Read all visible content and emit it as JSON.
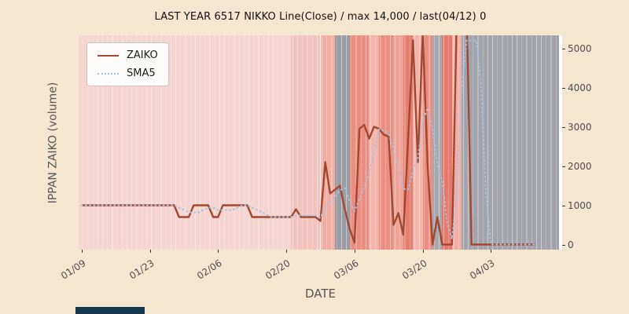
{
  "title": "LAST YEAR 6517 NIKKO Line(Close) / max 14,000 / last(04/12) 0",
  "xlabel": "DATE",
  "ylabel": "IPPAN ZAIKO (volume)",
  "legend": {
    "items": [
      {
        "label": "ZAIKO"
      },
      {
        "label": "SMA5"
      }
    ]
  },
  "chart_data": {
    "type": "line",
    "title": "LAST YEAR 6517 NIKKO Line(Close) / max 14,000 / last(04/12) 0",
    "xlabel": "DATE",
    "ylabel": "IPPAN ZAIKO (volume)",
    "x_ticks": [
      "01/09",
      "01/23",
      "02/06",
      "02/20",
      "03/06",
      "03/20",
      "04/03"
    ],
    "y_ticks": [
      0,
      1000,
      2000,
      3000,
      4000,
      5000
    ],
    "ylim": [
      -130,
      5330
    ],
    "xlim_days": [
      -0.6,
      98.6
    ],
    "grid": false,
    "legend_position": "upper-left",
    "stats": {
      "max_value": 14000,
      "last_date": "04/12",
      "last_value": 0
    },
    "series": [
      {
        "name": "ZAIKO",
        "color": "#a3472e",
        "style": "solid",
        "points": [
          [
            "01/09",
            1000
          ],
          [
            "01/26",
            1000
          ],
          [
            "01/28",
            1000
          ],
          [
            "01/29",
            700
          ],
          [
            "01/31",
            700
          ],
          [
            "02/01",
            1000
          ],
          [
            "02/02",
            1000
          ],
          [
            "02/04",
            1000
          ],
          [
            "02/05",
            700
          ],
          [
            "02/06",
            700
          ],
          [
            "02/07",
            1000
          ],
          [
            "02/12",
            1000
          ],
          [
            "02/13",
            700
          ],
          [
            "02/21",
            700
          ],
          [
            "02/22",
            900
          ],
          [
            "02/23",
            700
          ],
          [
            "02/26",
            700
          ],
          [
            "02/27",
            600
          ],
          [
            "02/28",
            2100
          ],
          [
            "03/01",
            1300
          ],
          [
            "03/03",
            1500
          ],
          [
            "03/04",
            900
          ],
          [
            "03/05",
            400
          ],
          [
            "03/06",
            50
          ],
          [
            "03/07",
            2950
          ],
          [
            "03/08",
            3050
          ],
          [
            "03/09",
            2700
          ],
          [
            "03/10",
            3000
          ],
          [
            "03/11",
            2950
          ],
          [
            "03/12",
            2800
          ],
          [
            "03/13",
            2750
          ],
          [
            "03/14",
            500
          ],
          [
            "03/15",
            800
          ],
          [
            "03/16",
            250
          ],
          [
            "03/17",
            2700
          ],
          [
            "03/18",
            5200
          ],
          [
            "03/19",
            2100
          ],
          [
            "03/20",
            5400
          ],
          [
            "03/21",
            2000
          ],
          [
            "03/22",
            0
          ],
          [
            "03/23",
            700
          ],
          [
            "03/24",
            0
          ],
          [
            "03/26",
            0
          ],
          [
            "03/27",
            6000
          ],
          [
            "03/28",
            14000
          ],
          [
            "03/29",
            6000
          ],
          [
            "03/30",
            0
          ],
          [
            "04/12",
            0
          ]
        ]
      },
      {
        "name": "SMA5",
        "color": "#9fc5e8",
        "style": "dotted",
        "derived_from": "ZAIKO",
        "window": 5
      }
    ],
    "bands": [
      {
        "from": "01/08",
        "to": "02/21",
        "color": "#f6d4cf"
      },
      {
        "from": "02/21",
        "to": "02/27",
        "color": "#f3c4bd"
      },
      {
        "from": "02/27",
        "to": "03/02",
        "color": "#efafa5"
      },
      {
        "from": "03/02",
        "to": "03/05",
        "color": "#9b9ba4"
      },
      {
        "from": "03/05",
        "to": "03/09",
        "color": "#e98e80"
      },
      {
        "from": "03/09",
        "to": "03/11",
        "color": "#f2b4ab"
      },
      {
        "from": "03/11",
        "to": "03/14",
        "color": "#e98e80"
      },
      {
        "from": "03/14",
        "to": "03/16",
        "color": "#efa295"
      },
      {
        "from": "03/16",
        "to": "03/18",
        "color": "#e47f71"
      },
      {
        "from": "03/18",
        "to": "03/20",
        "color": "#f2b4ab"
      },
      {
        "from": "03/20",
        "to": "03/22",
        "color": "#e98e80"
      },
      {
        "from": "03/22",
        "to": "03/24",
        "color": "#a7a7af"
      },
      {
        "from": "03/24",
        "to": "03/26",
        "color": "#e4796c"
      },
      {
        "from": "03/26",
        "to": "03/28",
        "color": "#f0b0a7"
      },
      {
        "from": "03/28",
        "to": "04/17",
        "color": "#a3a3ab"
      }
    ]
  }
}
